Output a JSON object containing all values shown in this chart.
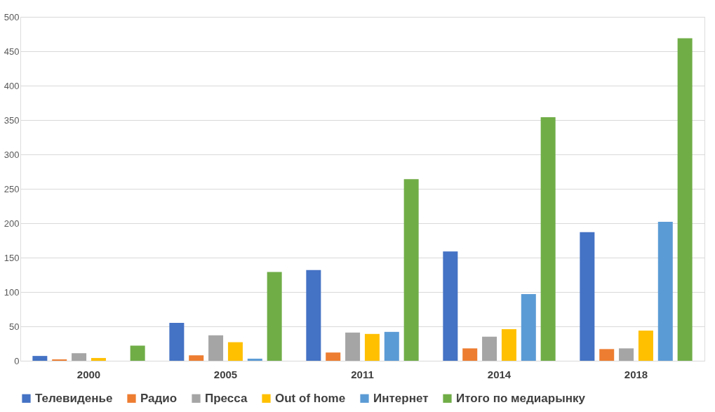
{
  "chart_data": {
    "type": "bar",
    "categories": [
      "2000",
      "2005",
      "2011",
      "2014",
      "2018"
    ],
    "series": [
      {
        "name": "Телевиденье",
        "color": "#4472c4",
        "values": [
          7,
          55,
          132,
          159,
          187
        ]
      },
      {
        "name": "Радио",
        "color": "#ed7d31",
        "values": [
          2,
          8,
          12,
          18,
          17
        ]
      },
      {
        "name": "Пресса",
        "color": "#a5a5a5",
        "values": [
          11,
          37,
          41,
          35,
          18
        ]
      },
      {
        "name": "Out of home",
        "color": "#ffc000",
        "values": [
          4,
          27,
          39,
          46,
          44
        ]
      },
      {
        "name": "Интернет",
        "color": "#5b9bd5",
        "values": [
          null,
          3,
          42,
          97,
          202
        ]
      },
      {
        "name": "Итого по медиарынку",
        "color": "#70ad47",
        "values": [
          22,
          129,
          264,
          354,
          469
        ]
      }
    ],
    "ylim": [
      0,
      500
    ],
    "yticks": [
      0,
      50,
      100,
      150,
      200,
      250,
      300,
      350,
      400,
      450,
      500
    ],
    "grid": "y",
    "legend": "bottom"
  }
}
